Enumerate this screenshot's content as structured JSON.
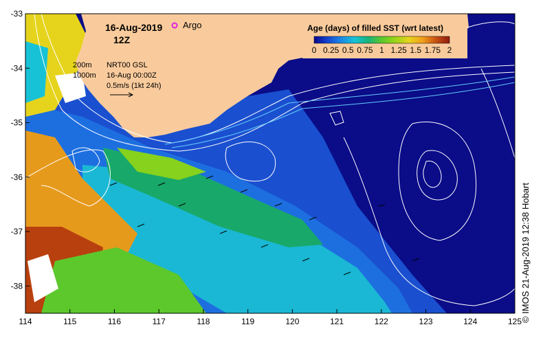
{
  "map": {
    "date": "16-Aug-2019",
    "hour": "12Z",
    "argo_label": "Argo",
    "contour_labels": [
      "200m",
      "1000m"
    ],
    "current_info": [
      "NRT00 GSL",
      "16-Aug 00:00Z",
      "0.5m/s (1kt 24h)"
    ],
    "credit": "© IMOS 21-Aug-2019 12:38 Hobart"
  },
  "colorbar": {
    "title": "Age (days) of filled SST (wrt latest)",
    "tick_labels": [
      "0",
      "0.25",
      "0.5",
      "0.75",
      "1",
      "1.25",
      "1.5",
      "1.75",
      "2"
    ],
    "colors": [
      "#08088a",
      "#1444d0",
      "#1c8ae6",
      "#18c2d6",
      "#18b47a",
      "#5cc82c",
      "#9ad418",
      "#e6d41c",
      "#f0a01c",
      "#c85014",
      "#8c1a0c"
    ]
  },
  "axes": {
    "x_ticks": [
      "114",
      "115",
      "116",
      "117",
      "118",
      "119",
      "120",
      "121",
      "122",
      "123",
      "124",
      "125"
    ],
    "y_ticks": [
      "-33",
      "-34",
      "-35",
      "-36",
      "-37",
      "-38"
    ],
    "lon_range": [
      114,
      125
    ],
    "lat_range": [
      -38.5,
      -33
    ]
  },
  "colors": {
    "land": "#f9cb9c",
    "ocean_deep": "#0a0c88",
    "ocean_blue": "#1a4fcf",
    "argo_marker": "#e020e0"
  }
}
